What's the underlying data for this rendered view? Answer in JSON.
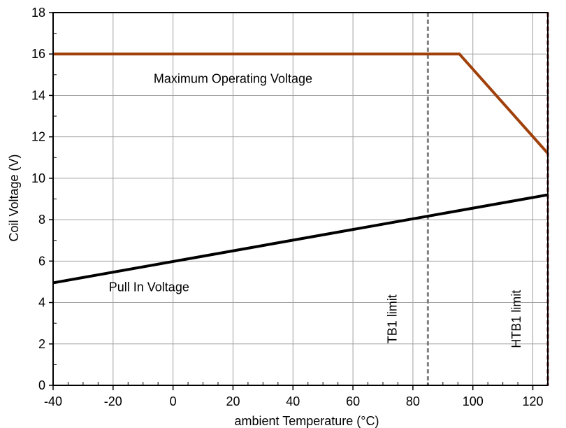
{
  "chart_data": {
    "type": "line",
    "title": "",
    "xlabel": "ambient Temperature (°C)",
    "ylabel": "Coil Voltage (V)",
    "xlim": [
      -40,
      125
    ],
    "ylim": [
      0,
      18
    ],
    "x_ticks": [
      -40,
      -20,
      0,
      20,
      40,
      60,
      80,
      100,
      120
    ],
    "y_ticks": [
      0,
      2,
      4,
      6,
      8,
      10,
      12,
      14,
      16,
      18
    ],
    "grid": true,
    "series": [
      {
        "name": "Maximum Operating Voltage",
        "color": "#a0400a",
        "x": [
          -40,
          95.5,
          125
        ],
        "y": [
          16,
          16,
          11.2
        ]
      },
      {
        "name": "Pull In Voltage",
        "color": "#000000",
        "x": [
          -40,
          125
        ],
        "y": [
          4.95,
          9.2
        ]
      }
    ],
    "reference_lines": [
      {
        "label": "TB1 limit",
        "x": 85,
        "color": "#808080",
        "style": "dashed"
      },
      {
        "label": "HTB1 limit",
        "x": 125,
        "color": "#8b1a1a",
        "style": "dashed"
      }
    ]
  }
}
